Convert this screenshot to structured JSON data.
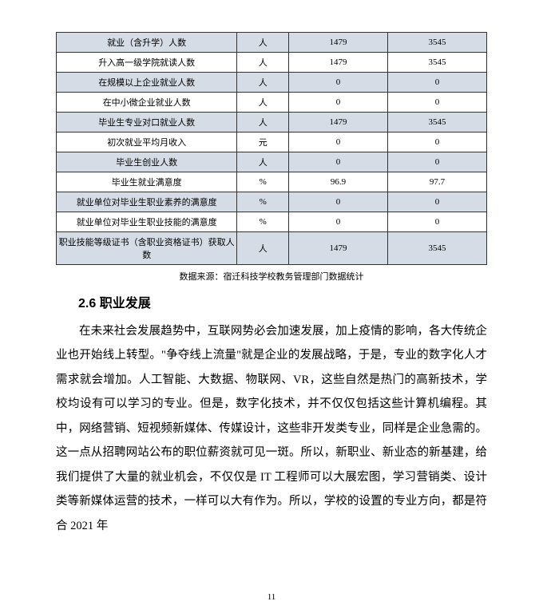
{
  "table": {
    "rows": [
      {
        "label": "就业（含升学）人数",
        "unit": "人",
        "v1": "1479",
        "v2": "3545"
      },
      {
        "label": "升入高一级学院就读人数",
        "unit": "人",
        "v1": "1479",
        "v2": "3545"
      },
      {
        "label": "在规模以上企业就业人数",
        "unit": "人",
        "v1": "0",
        "v2": "0"
      },
      {
        "label": "在中小微企业就业人数",
        "unit": "人",
        "v1": "0",
        "v2": "0"
      },
      {
        "label": "毕业生专业对口就业人数",
        "unit": "人",
        "v1": "1479",
        "v2": "3545"
      },
      {
        "label": "初次就业平均月收入",
        "unit": "元",
        "v1": "0",
        "v2": "0"
      },
      {
        "label": "毕业生创业人数",
        "unit": "人",
        "v1": "0",
        "v2": "0"
      },
      {
        "label": "毕业生就业满意度",
        "unit": "%",
        "v1": "96.9",
        "v2": "97.7"
      },
      {
        "label": "就业单位对毕业生职业素养的满意度",
        "unit": "%",
        "v1": "0",
        "v2": "0"
      },
      {
        "label": "就业单位对毕业生职业技能的满意度",
        "unit": "%",
        "v1": "0",
        "v2": "0"
      },
      {
        "label": "职业技能等级证书（含职业资格证书）获取人数",
        "unit": "人",
        "v1": "1479",
        "v2": "3545"
      }
    ],
    "caption": "数据来源：宿迁科技学校教务管理部门数据统计",
    "column_widths": {
      "label": "42%",
      "unit": "12%",
      "v1": "23%",
      "v2": "23%"
    },
    "colors": {
      "odd_row_bg": "#d6dce5",
      "even_row_bg": "#ffffff",
      "border": "#333333"
    },
    "font_size_pt": 11
  },
  "heading": "2.6 职业发展",
  "body": "在未来社会发展趋势中，互联网势必会加速发展，加上疫情的影响，各大传统企业也开始线上转型。\"争夺线上流量\"就是企业的发展战略，于是，专业的数字化人才需求就会增加。人工智能、大数据、物联网、VR，这些自然是热门的高新技术，学校均设有可以学习的专业。但是，数字化技术，并不仅仅包括这些计算机编程。其中，网络营销、短视频新媒体、传媒设计，这些非开发类专业，同样是企业急需的。这一点从招聘网站公布的职位薪资就可见一斑。所以，新职业、新业态的新基建，给我们提供了大量的就业机会，不仅仅是 IT 工程师可以大展宏图，学习营销类、设计类等新媒体运营的技术，一样可以大有作为。所以，学校的设置的专业方向，都是符合 2021 年",
  "page_number": "11",
  "body_fontsize_pt": 14.5,
  "body_line_height": 2.1
}
